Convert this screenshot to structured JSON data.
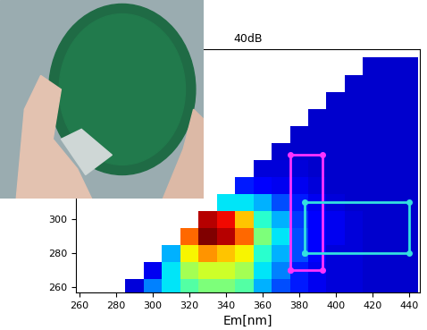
{
  "chart_data": {
    "type": "heatmap",
    "title": "40dB",
    "x_label": "Em[nm]",
    "x": [
      280,
      290,
      300,
      310,
      320,
      330,
      340,
      350,
      360,
      370,
      380,
      390,
      400,
      410,
      420,
      430,
      440
    ],
    "y": [
      260,
      270,
      280,
      290,
      300,
      310,
      320,
      330,
      340,
      350,
      360,
      370,
      380,
      390
    ],
    "cells": [
      [
        null,
        0.08,
        0.25,
        0.35,
        0.45,
        0.5,
        0.5,
        0.45,
        0.3,
        0.2,
        0.15,
        0.1,
        0.08,
        0.08,
        0.07,
        0.07,
        0.07
      ],
      [
        null,
        null,
        0.1,
        0.35,
        0.55,
        0.6,
        0.6,
        0.55,
        0.35,
        0.25,
        0.15,
        0.1,
        0.08,
        0.08,
        0.07,
        0.07,
        0.07
      ],
      [
        null,
        null,
        null,
        0.3,
        0.65,
        0.75,
        0.7,
        0.65,
        0.4,
        0.3,
        0.2,
        0.12,
        0.08,
        0.08,
        0.07,
        0.07,
        0.07
      ],
      [
        null,
        null,
        null,
        null,
        0.8,
        1.0,
        0.95,
        0.8,
        0.5,
        0.35,
        0.2,
        0.12,
        0.1,
        0.08,
        0.07,
        0.07,
        0.07
      ],
      [
        null,
        null,
        null,
        null,
        null,
        0.95,
        0.9,
        0.7,
        0.4,
        0.3,
        0.18,
        0.12,
        0.1,
        0.08,
        0.07,
        0.07,
        0.07
      ],
      [
        null,
        null,
        null,
        null,
        null,
        null,
        0.35,
        0.35,
        0.3,
        0.2,
        0.15,
        0.1,
        0.08,
        0.07,
        0.07,
        0.07,
        0.07
      ],
      [
        null,
        null,
        null,
        null,
        null,
        null,
        null,
        0.15,
        0.12,
        0.1,
        0.1,
        0.08,
        0.07,
        0.07,
        0.07,
        0.07,
        0.07
      ],
      [
        null,
        null,
        null,
        null,
        null,
        null,
        null,
        null,
        0.08,
        0.08,
        0.08,
        0.07,
        0.07,
        0.07,
        0.07,
        0.07,
        0.07
      ],
      [
        null,
        null,
        null,
        null,
        null,
        null,
        null,
        null,
        null,
        0.07,
        0.07,
        0.07,
        0.07,
        0.07,
        0.07,
        0.07,
        0.07
      ],
      [
        null,
        null,
        null,
        null,
        null,
        null,
        null,
        null,
        null,
        null,
        0.07,
        0.07,
        0.07,
        0.07,
        0.07,
        0.07,
        0.07
      ],
      [
        null,
        null,
        null,
        null,
        null,
        null,
        null,
        null,
        null,
        null,
        null,
        0.07,
        0.07,
        0.07,
        0.07,
        0.07,
        0.07
      ],
      [
        null,
        null,
        null,
        null,
        null,
        null,
        null,
        null,
        null,
        null,
        null,
        null,
        0.07,
        0.07,
        0.07,
        0.07,
        0.07
      ],
      [
        null,
        null,
        null,
        null,
        null,
        null,
        null,
        null,
        null,
        null,
        null,
        null,
        null,
        0.07,
        0.07,
        0.07,
        0.07
      ],
      [
        null,
        null,
        null,
        null,
        null,
        null,
        null,
        null,
        null,
        null,
        null,
        null,
        null,
        null,
        0.07,
        0.07,
        0.07
      ]
    ],
    "xlim": [
      258,
      446
    ],
    "ylim": [
      257,
      400
    ],
    "xticks": [
      260,
      280,
      300,
      320,
      340,
      360,
      380,
      400,
      420,
      440
    ],
    "yticks": [
      260,
      280,
      300
    ],
    "regions": [
      {
        "color": "#ff33ff",
        "x": [
          375,
          393
        ],
        "y": [
          270,
          338
        ]
      },
      {
        "color": "#33e0e0",
        "x": [
          383,
          440
        ],
        "y": [
          280,
          310
        ]
      }
    ],
    "grid": false
  }
}
